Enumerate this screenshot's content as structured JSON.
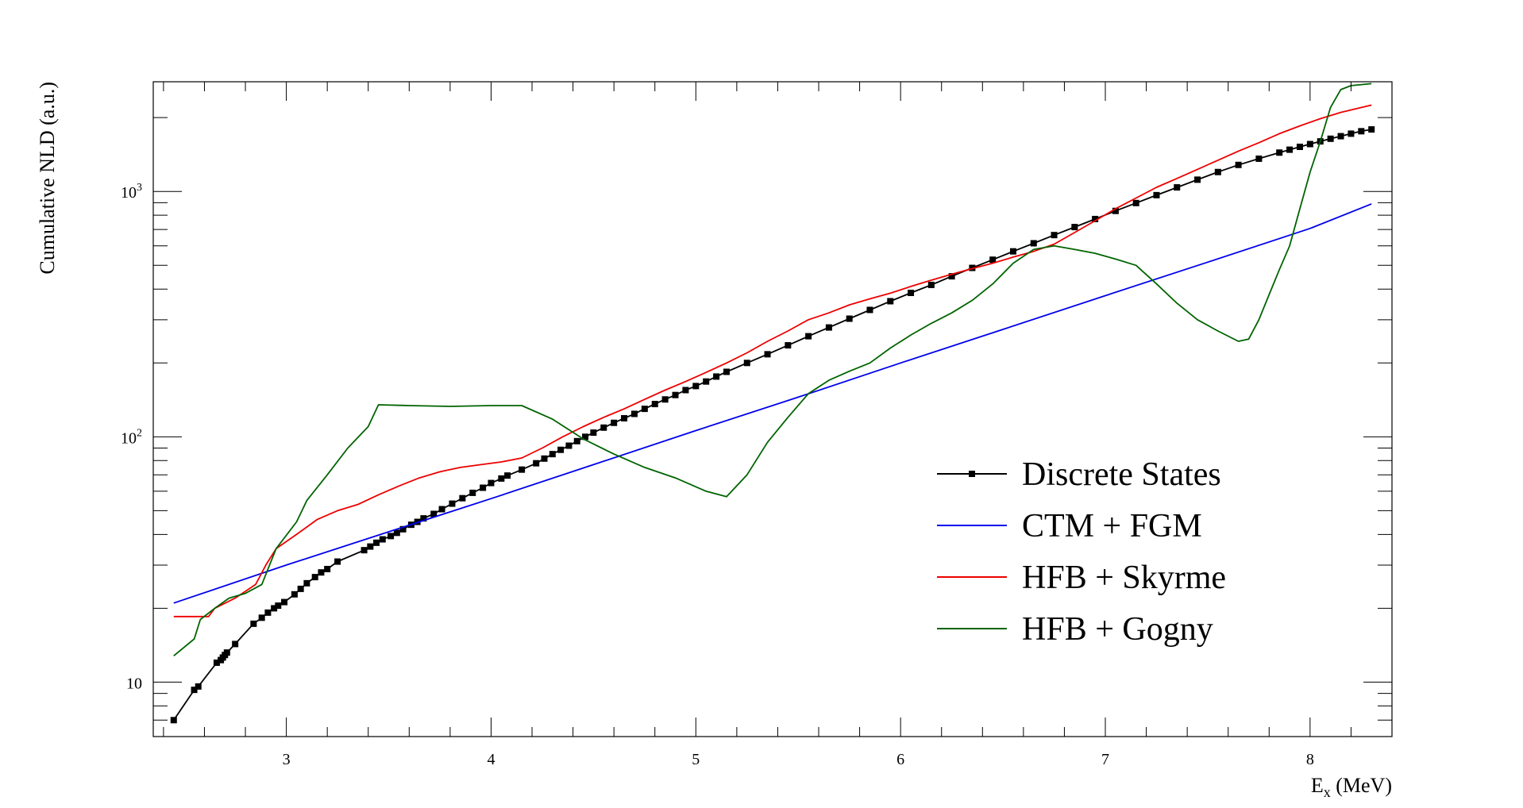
{
  "chart_data": {
    "type": "line",
    "title": "",
    "xlabel_main": "E",
    "xlabel_sub": "x",
    "xlabel_unit": " (MeV)",
    "ylabel": "Cumulative NLD (a.u.)",
    "xlim": [
      2.35,
      8.4
    ],
    "ylim": [
      6,
      2800
    ],
    "y_scale": "log",
    "x_ticks": [
      3,
      4,
      5,
      6,
      7,
      8
    ],
    "x_tick_labels": [
      "3",
      "4",
      "5",
      "6",
      "7",
      "8"
    ],
    "y_major_ticks": [
      {
        "value": 10,
        "base": "10",
        "exp": ""
      },
      {
        "value": 100,
        "base": "10",
        "exp": "2"
      },
      {
        "value": 1000,
        "base": "10",
        "exp": "3"
      }
    ],
    "legend_position": "center-right",
    "series": [
      {
        "name": "Discrete States",
        "color": "#000000",
        "marker": "square",
        "x": [
          2.45,
          2.55,
          2.57,
          2.66,
          2.68,
          2.69,
          2.7,
          2.71,
          2.75,
          2.84,
          2.88,
          2.91,
          2.94,
          2.96,
          2.99,
          3.04,
          3.07,
          3.1,
          3.14,
          3.17,
          3.2,
          3.25,
          3.38,
          3.41,
          3.44,
          3.47,
          3.51,
          3.54,
          3.57,
          3.61,
          3.64,
          3.67,
          3.72,
          3.76,
          3.81,
          3.86,
          3.91,
          3.96,
          4.0,
          4.05,
          4.08,
          4.15,
          4.22,
          4.26,
          4.3,
          4.34,
          4.38,
          4.42,
          4.46,
          4.5,
          4.55,
          4.6,
          4.65,
          4.7,
          4.75,
          4.8,
          4.85,
          4.9,
          4.95,
          5.0,
          5.05,
          5.1,
          5.15,
          5.25,
          5.35,
          5.45,
          5.55,
          5.65,
          5.75,
          5.85,
          5.95,
          6.05,
          6.15,
          6.25,
          6.35,
          6.45,
          6.55,
          6.65,
          6.75,
          6.85,
          6.95,
          7.05,
          7.15,
          7.25,
          7.35,
          7.45,
          7.55,
          7.65,
          7.75,
          7.85,
          7.9,
          7.95,
          8.0,
          8.05,
          8.1,
          8.15,
          8.2,
          8.25,
          8.3
        ],
        "y": [
          7.0,
          9.3,
          9.6,
          12.0,
          12.3,
          12.6,
          12.9,
          13.2,
          14.3,
          17.3,
          18.3,
          19.2,
          20.0,
          20.5,
          21.2,
          22.8,
          24.0,
          25.3,
          26.8,
          28.0,
          28.9,
          31.0,
          34.5,
          35.7,
          37.0,
          38.2,
          39.4,
          40.6,
          42.0,
          43.8,
          45.0,
          46.5,
          48.5,
          50.7,
          53.4,
          56.2,
          59.1,
          62.0,
          64.8,
          67.6,
          69.5,
          73.5,
          78.0,
          81.5,
          85.0,
          88.5,
          92.0,
          96.0,
          100.0,
          104.0,
          109.0,
          114.0,
          119.0,
          124.0,
          130.0,
          136.0,
          142.0,
          148.0,
          155.0,
          161.0,
          168.0,
          176.0,
          184.0,
          200.0,
          217.0,
          236.0,
          257.0,
          279.0,
          303.0,
          329.0,
          357.0,
          386.0,
          416.0,
          451.0,
          488.0,
          527.0,
          570.0,
          615.0,
          664.0,
          716.0,
          772.0,
          833.0,
          897.0,
          966.0,
          1039.0,
          1117.0,
          1200.0,
          1283.0,
          1360.0,
          1440.0,
          1480.0,
          1520.0,
          1560.0,
          1600.0,
          1640.0,
          1680.0,
          1720.0,
          1760.0,
          1790.0
        ]
      },
      {
        "name": "CTM + FGM",
        "color": "#0000ee",
        "marker": "none",
        "x": [
          2.45,
          3.0,
          3.5,
          4.0,
          4.5,
          5.0,
          5.5,
          6.0,
          6.5,
          7.0,
          7.5,
          8.0,
          8.3
        ],
        "y": [
          21.0,
          30.0,
          41.0,
          56.0,
          77.0,
          106.0,
          145.0,
          200.0,
          274.0,
          376.0,
          515.0,
          707.0,
          890.0
        ]
      },
      {
        "name": "HFB + Skyrme",
        "color": "#ee0000",
        "marker": "none",
        "x": [
          2.45,
          2.62,
          2.65,
          2.75,
          2.85,
          2.9,
          2.95,
          3.05,
          3.15,
          3.25,
          3.35,
          3.45,
          3.55,
          3.65,
          3.75,
          3.85,
          3.95,
          4.05,
          4.15,
          4.25,
          4.35,
          4.45,
          4.55,
          4.65,
          4.75,
          4.85,
          4.95,
          5.05,
          5.15,
          5.25,
          5.35,
          5.45,
          5.55,
          5.65,
          5.75,
          5.85,
          5.95,
          6.05,
          6.15,
          6.25,
          6.35,
          6.45,
          6.55,
          6.65,
          6.75,
          6.85,
          6.95,
          7.05,
          7.15,
          7.25,
          7.35,
          7.45,
          7.55,
          7.65,
          7.75,
          7.85,
          7.95,
          8.05,
          8.15,
          8.3
        ],
        "y": [
          18.5,
          18.5,
          20.0,
          22.0,
          25.0,
          30.0,
          35.0,
          40.0,
          46.0,
          50.0,
          53.0,
          58.0,
          63.0,
          68.0,
          72.0,
          75.0,
          77.0,
          79.0,
          82.0,
          90.0,
          100.0,
          110.0,
          120.0,
          130.0,
          142.0,
          155.0,
          168.0,
          183.0,
          200.0,
          220.0,
          245.0,
          270.0,
          300.0,
          320.0,
          345.0,
          365.0,
          385.0,
          410.0,
          435.0,
          460.0,
          485.0,
          510.0,
          540.0,
          570.0,
          610.0,
          680.0,
          760.0,
          850.0,
          940.0,
          1040.0,
          1130.0,
          1230.0,
          1340.0,
          1460.0,
          1580.0,
          1720.0,
          1850.0,
          1980.0,
          2100.0,
          2250.0
        ]
      },
      {
        "name": "HFB + Gogny",
        "color": "#006400",
        "marker": "none",
        "x": [
          2.45,
          2.55,
          2.58,
          2.65,
          2.72,
          2.8,
          2.88,
          2.95,
          3.05,
          3.1,
          3.2,
          3.3,
          3.4,
          3.45,
          3.6,
          3.8,
          4.0,
          4.15,
          4.3,
          4.45,
          4.6,
          4.75,
          4.9,
          5.05,
          5.15,
          5.25,
          5.35,
          5.45,
          5.55,
          5.65,
          5.75,
          5.85,
          5.95,
          6.05,
          6.15,
          6.25,
          6.35,
          6.45,
          6.55,
          6.65,
          6.75,
          6.85,
          6.95,
          7.05,
          7.15,
          7.25,
          7.35,
          7.45,
          7.55,
          7.65,
          7.7,
          7.75,
          7.8,
          7.85,
          7.9,
          7.95,
          8.0,
          8.05,
          8.1,
          8.15,
          8.2,
          8.3
        ],
        "y": [
          12.8,
          15.0,
          18.0,
          20.0,
          22.0,
          23.0,
          25.0,
          35.0,
          45.0,
          55.0,
          70.0,
          90.0,
          110.0,
          135.0,
          134.0,
          133.0,
          134.0,
          134.0,
          118.0,
          98.0,
          85.0,
          75.0,
          68.0,
          60.0,
          57.0,
          70.0,
          95.0,
          120.0,
          150.0,
          170.0,
          185.0,
          200.0,
          230.0,
          260.0,
          290.0,
          320.0,
          360.0,
          420.0,
          510.0,
          580.0,
          600.0,
          580.0,
          560.0,
          530.0,
          500.0,
          420.0,
          350.0,
          300.0,
          270.0,
          245.0,
          250.0,
          300.0,
          380.0,
          480.0,
          600.0,
          850.0,
          1200.0,
          1600.0,
          2200.0,
          2600.0,
          2700.0,
          2750.0
        ]
      }
    ]
  }
}
